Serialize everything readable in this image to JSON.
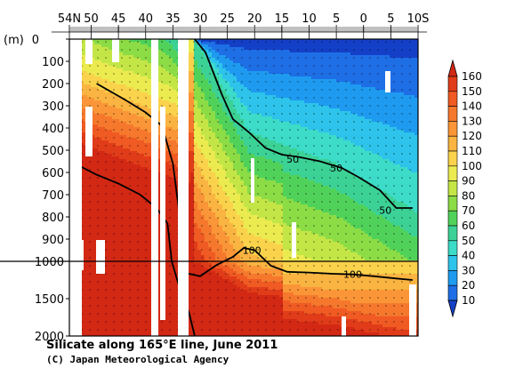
{
  "chart_data": {
    "type": "heatmap",
    "title": "Silicate along 165°E line, June 2011",
    "credit": "(C) Japan Meteorological Agency",
    "unit_label": "(m)",
    "x_ticks": [
      {
        "lat": 54,
        "label": "54N"
      },
      {
        "lat": 50,
        "label": "50"
      },
      {
        "lat": 45,
        "label": "45"
      },
      {
        "lat": 40,
        "label": "40"
      },
      {
        "lat": 35,
        "label": "35"
      },
      {
        "lat": 30,
        "label": "30"
      },
      {
        "lat": 25,
        "label": "25"
      },
      {
        "lat": 20,
        "label": "20"
      },
      {
        "lat": 15,
        "label": "15"
      },
      {
        "lat": 10,
        "label": "10"
      },
      {
        "lat": 5,
        "label": "5"
      },
      {
        "lat": 0,
        "label": "0"
      },
      {
        "lat": -5,
        "label": "5"
      },
      {
        "lat": -10,
        "label": "10S"
      }
    ],
    "x_range": [
      54,
      -10
    ],
    "y_ticks_upper": [
      0,
      100,
      200,
      300,
      400,
      500,
      600,
      700,
      800,
      900,
      1000
    ],
    "y_ticks_lower": [
      1500,
      2000
    ],
    "y_range": [
      0,
      2000
    ],
    "y_break": 1000,
    "colorbar": {
      "levels": [
        10,
        20,
        30,
        40,
        50,
        60,
        70,
        80,
        90,
        100,
        110,
        120,
        130,
        140,
        150,
        160
      ],
      "colors": [
        "#1440c8",
        "#1e6ee6",
        "#1e9bf0",
        "#2dc3eb",
        "#3cdcc8",
        "#3cd296",
        "#50d25a",
        "#8cdc46",
        "#c3e646",
        "#ebeb50",
        "#fad24b",
        "#fab441",
        "#fa9637",
        "#f5782d",
        "#f05a23",
        "#e13c19",
        "#d22814"
      ]
    },
    "contour_labels": [
      {
        "value": "50",
        "lat": 13,
        "depth": 540
      },
      {
        "value": "50",
        "lat": 5,
        "depth": 580
      },
      {
        "value": "50",
        "lat": -4,
        "depth": 770
      },
      {
        "value": "100",
        "lat": 20.5,
        "depth": 950
      },
      {
        "value": "100",
        "lat": 2,
        "depth": 1170
      }
    ],
    "bold_contours": [
      {
        "value": 50,
        "points": [
          [
            31,
            0
          ],
          [
            29,
            60
          ],
          [
            26,
            250
          ],
          [
            24,
            360
          ],
          [
            21,
            420
          ],
          [
            18,
            490
          ],
          [
            15,
            520
          ],
          [
            12,
            530
          ],
          [
            8,
            550
          ],
          [
            4,
            580
          ],
          [
            1,
            620
          ],
          [
            -3,
            680
          ],
          [
            -6,
            760
          ],
          [
            -9,
            760
          ]
        ]
      },
      {
        "value": 100,
        "points": [
          [
            49,
            200
          ],
          [
            44,
            270
          ],
          [
            40,
            330
          ],
          [
            37,
            390
          ],
          [
            35,
            560
          ],
          [
            34,
            750
          ],
          [
            33,
            1000
          ],
          [
            32.5,
            1160
          ],
          [
            30,
            1200
          ],
          [
            27,
            1050
          ],
          [
            24,
            980
          ],
          [
            22,
            940
          ],
          [
            20,
            950
          ],
          [
            17,
            1060
          ],
          [
            14,
            1140
          ],
          [
            10,
            1150
          ],
          [
            6,
            1165
          ],
          [
            2,
            1175
          ],
          [
            -2,
            1200
          ],
          [
            -6,
            1230
          ],
          [
            -9,
            1250
          ]
        ]
      },
      {
        "value": 150,
        "points": [
          [
            53,
            560
          ],
          [
            49,
            610
          ],
          [
            45,
            650
          ],
          [
            41,
            700
          ],
          [
            38,
            760
          ],
          [
            36,
            830
          ],
          [
            35.2,
            1000
          ],
          [
            34,
            1300
          ],
          [
            33,
            1500
          ],
          [
            32,
            1700
          ],
          [
            31,
            2000
          ]
        ]
      }
    ]
  }
}
